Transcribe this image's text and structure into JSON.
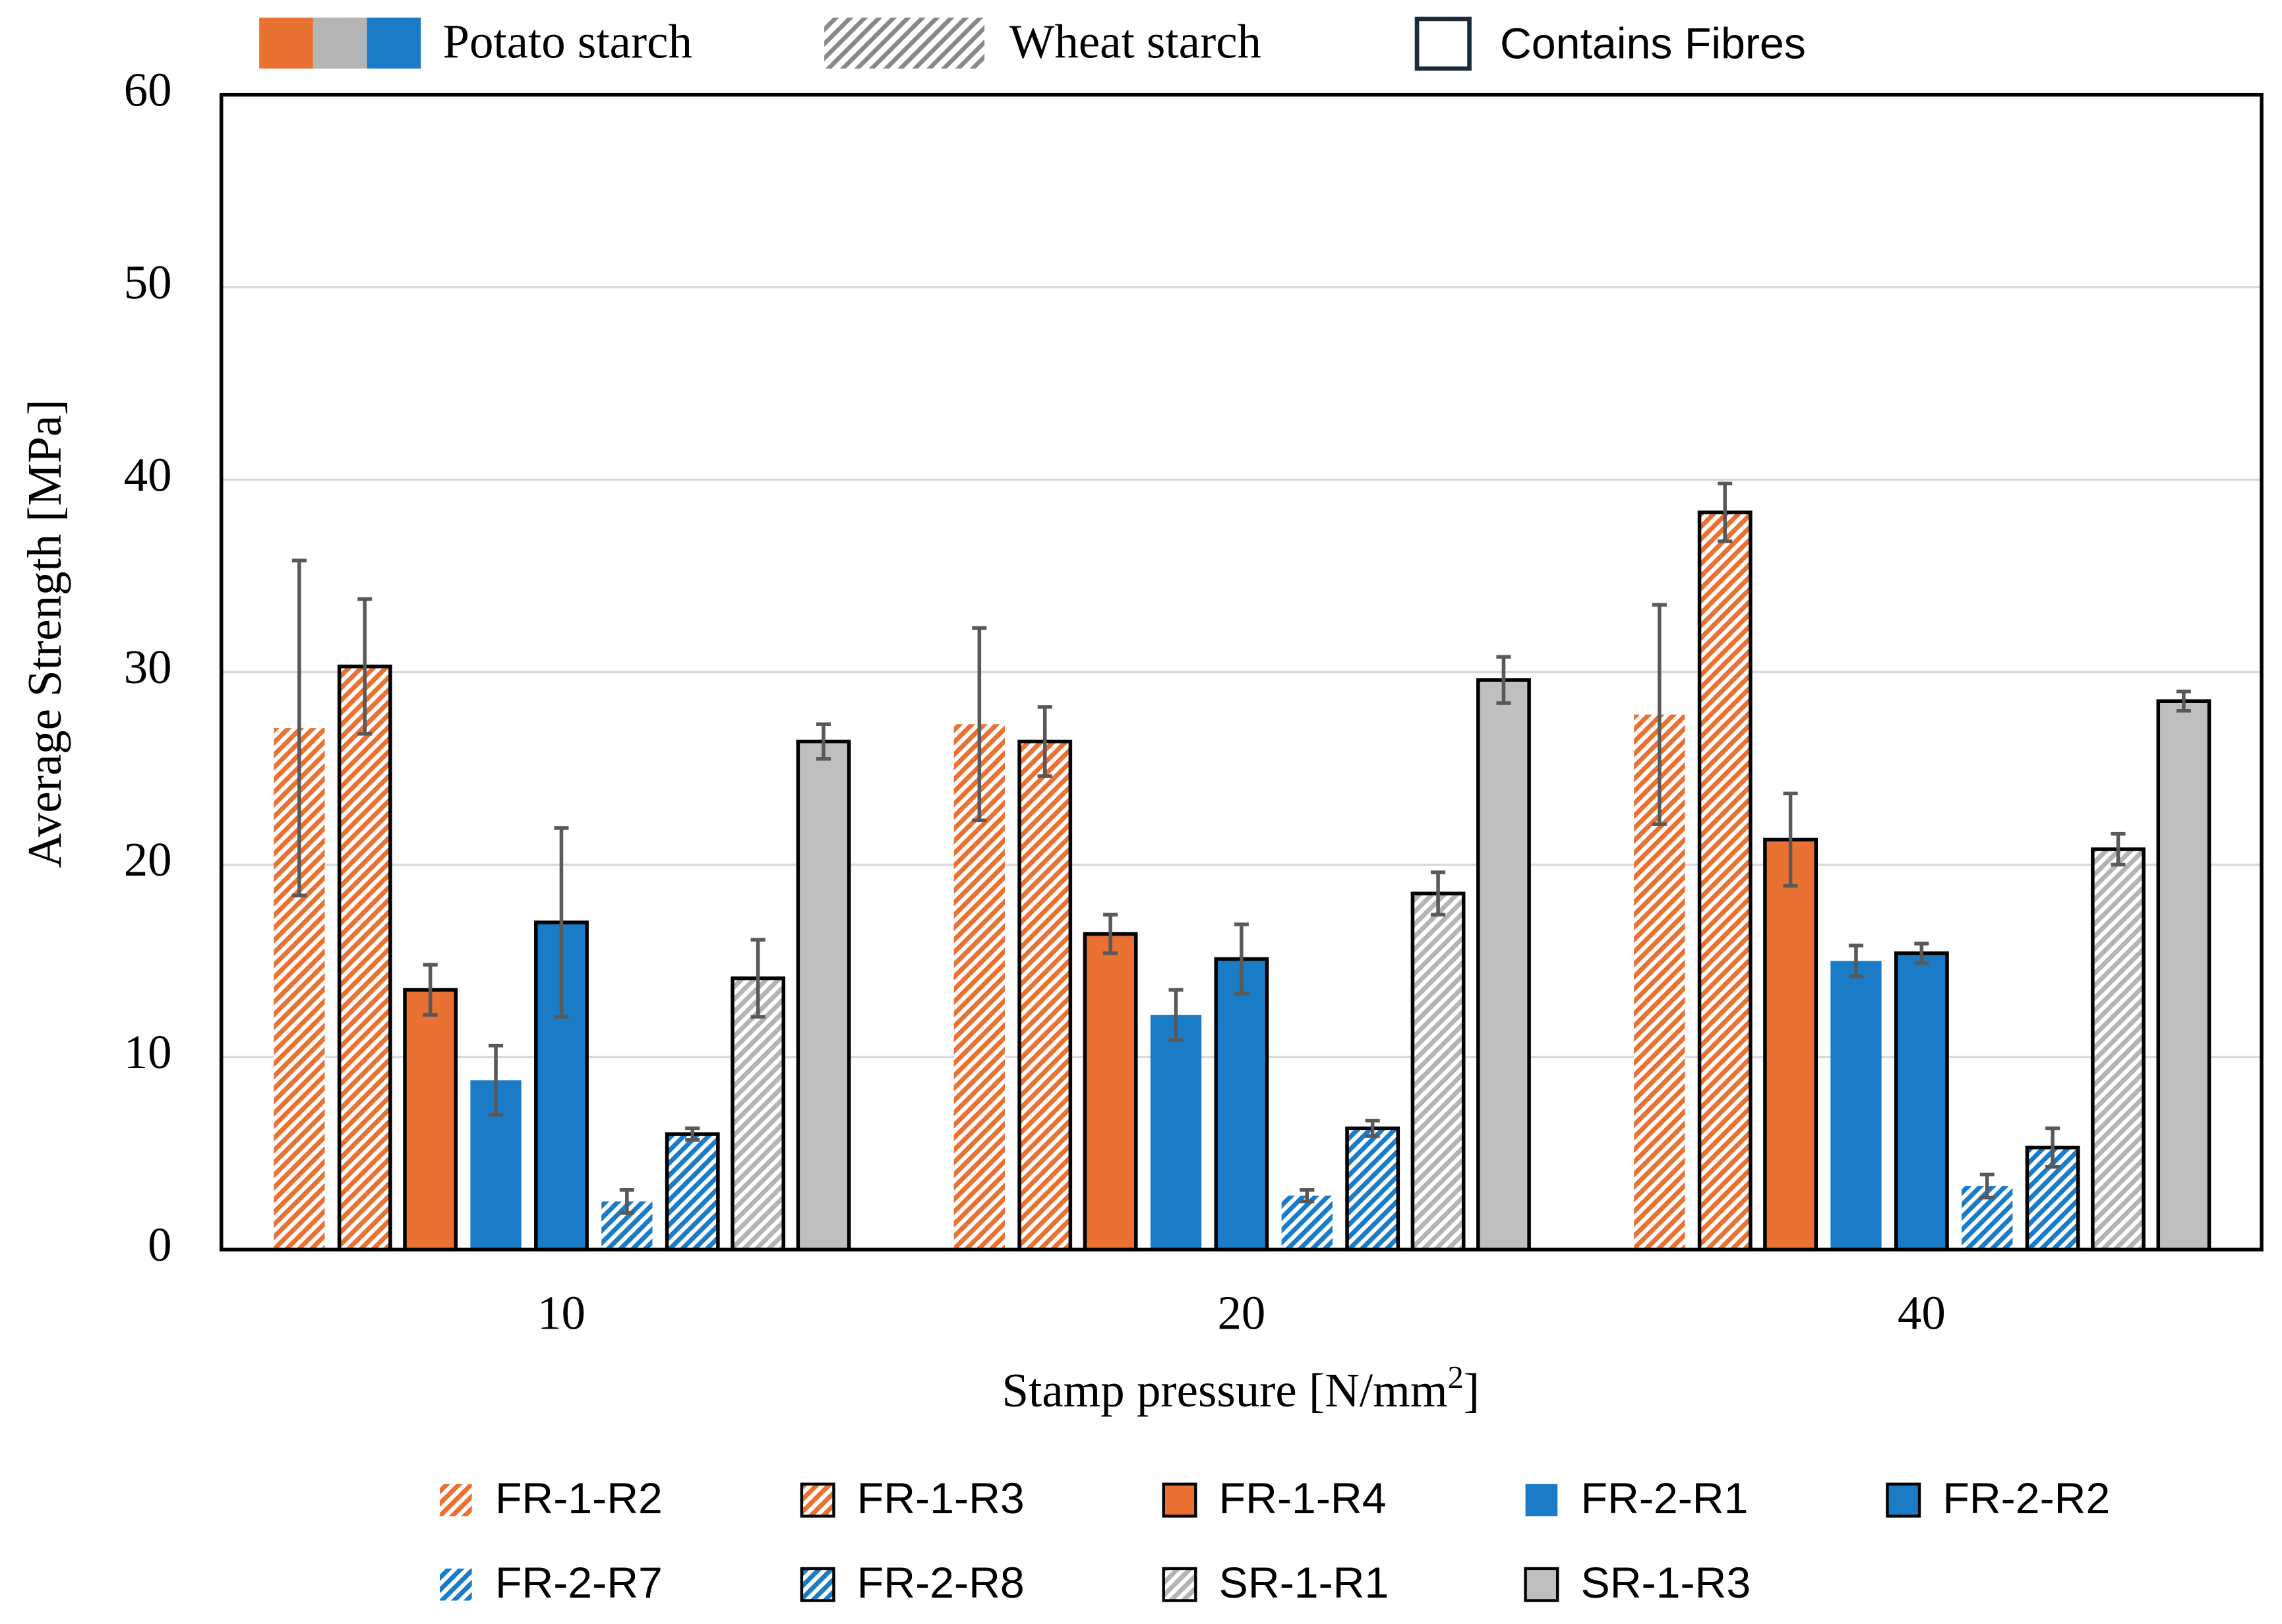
{
  "chart_data": {
    "type": "bar",
    "top_legend": [
      "Potato starch",
      "Wheat starch",
      "Contains Fibres"
    ],
    "ylabel": "Average Strength [MPa]",
    "xlabel": [
      "Stamp pressure [N/mm",
      "2",
      "]"
    ],
    "categories": [
      "10",
      "20",
      "40"
    ],
    "ylim": [
      0,
      60
    ],
    "yticks": [
      0,
      10,
      20,
      30,
      40,
      50,
      60
    ],
    "grid": true,
    "series": [
      {
        "name": "FR-1-R2",
        "color": "#e97132",
        "hatched": true,
        "outlined": false,
        "values": [
          27.1,
          27.3,
          27.8
        ],
        "errors": [
          8.7,
          5.0,
          5.7
        ]
      },
      {
        "name": "FR-1-R3",
        "color": "#e97132",
        "hatched": true,
        "outlined": true,
        "values": [
          30.3,
          26.4,
          38.3
        ],
        "errors": [
          3.5,
          1.8,
          1.5
        ]
      },
      {
        "name": "FR-1-R4",
        "color": "#e97132",
        "hatched": false,
        "outlined": true,
        "values": [
          13.5,
          16.4,
          21.3
        ],
        "errors": [
          1.3,
          1.0,
          2.4
        ]
      },
      {
        "name": "FR-2-R1",
        "color": "#1a7bc7",
        "hatched": false,
        "outlined": false,
        "values": [
          8.8,
          12.2,
          15.0
        ],
        "errors": [
          1.8,
          1.3,
          0.8
        ]
      },
      {
        "name": "FR-2-R2",
        "color": "#1a7bc7",
        "hatched": false,
        "outlined": true,
        "values": [
          17.0,
          15.1,
          15.4
        ],
        "errors": [
          4.9,
          1.8,
          0.5
        ]
      },
      {
        "name": "FR-2-R7",
        "color": "#1a7bc7",
        "hatched": true,
        "outlined": false,
        "values": [
          2.5,
          2.8,
          3.3
        ],
        "errors": [
          0.6,
          0.3,
          0.6
        ]
      },
      {
        "name": "FR-2-R8",
        "color": "#1a7bc7",
        "hatched": true,
        "outlined": true,
        "values": [
          6.0,
          6.3,
          5.3
        ],
        "errors": [
          0.3,
          0.4,
          1.0
        ]
      },
      {
        "name": "SR-1-R1",
        "color": "#b4b4b4",
        "hatched": true,
        "outlined": true,
        "values": [
          14.1,
          18.5,
          20.8
        ],
        "errors": [
          2.0,
          1.1,
          0.8
        ]
      },
      {
        "name": "SR-1-R3",
        "color": "#bfbfbf",
        "hatched": false,
        "outlined": true,
        "values": [
          26.4,
          29.6,
          28.5
        ],
        "errors": [
          0.9,
          1.2,
          0.5
        ]
      }
    ]
  }
}
